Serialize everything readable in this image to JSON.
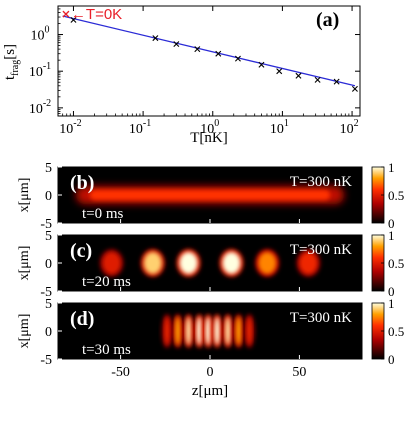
{
  "chart_data": [
    {
      "type": "scatter",
      "panel_label": "(a)",
      "xlabel": "T[nK]",
      "ylabel_main": "t",
      "ylabel_sub": "frag",
      "ylabel_unit": "[s]",
      "xscale": "log",
      "yscale": "log",
      "xlim": [
        0.006,
        130
      ],
      "ylim": [
        0.006,
        6
      ],
      "xticks": [
        0.01,
        0.1,
        1,
        10,
        100
      ],
      "xtick_labels": [
        "10",
        "10",
        "10",
        "10",
        "10"
      ],
      "xtick_exps": [
        "-2",
        "-1",
        "0",
        "1",
        "2"
      ],
      "yticks": [
        0.01,
        0.1,
        1
      ],
      "ytick_labels": [
        "10",
        "10",
        "10"
      ],
      "ytick_exps": [
        "-2",
        "-1",
        "0"
      ],
      "points": {
        "marker": "x",
        "x": [
          0.01,
          0.15,
          0.3,
          0.6,
          1.2,
          2.3,
          5,
          9,
          17,
          32,
          60,
          110
        ],
        "y": [
          2.5,
          0.8,
          0.55,
          0.4,
          0.3,
          0.22,
          0.15,
          0.1,
          0.075,
          0.058,
          0.052,
          0.033
        ]
      },
      "fit_line": {
        "color": "#2b2bd6",
        "x": [
          0.007,
          110
        ],
        "y": [
          3.2,
          0.04
        ]
      },
      "annotation": {
        "text": "T=0K",
        "arrow": "←",
        "color": "#e8202a",
        "x": 0.0078,
        "y": 3.6
      }
    },
    {
      "type": "heatmap",
      "panel_label": "(b)",
      "temperature_label": "T=300 nK",
      "time_label": "t=0 ms",
      "ylabel": "x[μm]",
      "yticks": [
        5,
        0,
        -5
      ],
      "ylim": [
        -5,
        5
      ],
      "xlim": [
        -85,
        85
      ],
      "colorbar_ticks": [
        1,
        0.5,
        0
      ],
      "colorbar_labels": [
        "1",
        "0.5",
        "0"
      ],
      "profile": "uniform",
      "width_z": 75,
      "peak": 0.6
    },
    {
      "type": "heatmap",
      "panel_label": "(c)",
      "temperature_label": "T=300 nK",
      "time_label": "t=20 ms",
      "ylabel": "x[μm]",
      "yticks": [
        5,
        0,
        -5
      ],
      "ylim": [
        -5,
        5
      ],
      "xlim": [
        -85,
        85
      ],
      "colorbar_ticks": [
        1,
        0.5,
        0
      ],
      "colorbar_labels": [
        "1",
        "0.5",
        "0"
      ],
      "fragments_z": [
        -55,
        -32,
        -12,
        12,
        32,
        55
      ],
      "fragment_peaks": [
        0.5,
        0.9,
        1.0,
        1.0,
        0.75,
        0.55
      ]
    },
    {
      "type": "heatmap",
      "panel_label": "(d)",
      "temperature_label": "T=300 nK",
      "time_label": "t=30 ms",
      "ylabel": "x[μm]",
      "yticks": [
        5,
        0,
        -5
      ],
      "ylim": [
        -5,
        5
      ],
      "xlim": [
        -85,
        85
      ],
      "xlabel": "z[μm]",
      "xticks": [
        -50,
        0,
        50
      ],
      "xtick_labels": [
        "-50",
        "0",
        "50"
      ],
      "colorbar_ticks": [
        1,
        0.5,
        0
      ],
      "colorbar_labels": [
        "1",
        "0.5",
        "0"
      ],
      "fragments_z": [
        -24,
        -18,
        -12,
        -6,
        -1,
        4,
        10,
        16,
        22
      ],
      "fragment_peaks": [
        0.55,
        0.8,
        0.95,
        1.0,
        1.0,
        1.0,
        0.95,
        0.8,
        0.55
      ]
    }
  ]
}
